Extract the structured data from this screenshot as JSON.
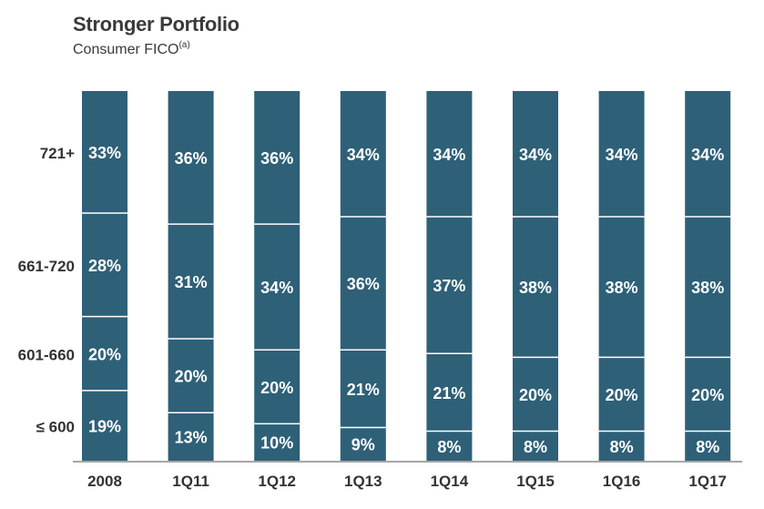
{
  "header": {
    "title": "Stronger Portfolio",
    "subtitle": "Consumer FICO",
    "subtitle_note": "(a)"
  },
  "chart_data": {
    "type": "bar",
    "stacked": true,
    "percent": true,
    "title": "Stronger Portfolio",
    "subtitle": "Consumer FICO",
    "categories": [
      "2008",
      "1Q11",
      "1Q12",
      "1Q13",
      "1Q14",
      "1Q15",
      "1Q16",
      "1Q17"
    ],
    "series": [
      {
        "name": "≤ 600",
        "values": [
          19,
          13,
          10,
          9,
          8,
          8,
          8,
          8
        ]
      },
      {
        "name": "601-660",
        "values": [
          20,
          20,
          20,
          21,
          21,
          20,
          20,
          20
        ]
      },
      {
        "name": "661-720",
        "values": [
          28,
          31,
          34,
          36,
          37,
          38,
          38,
          38
        ]
      },
      {
        "name": "721+",
        "values": [
          33,
          36,
          36,
          34,
          34,
          34,
          34,
          34
        ]
      }
    ],
    "row_labels_on_first_bar": true,
    "bar_color": "#2e6078",
    "divider_color": "#ffffff",
    "grid": false
  }
}
